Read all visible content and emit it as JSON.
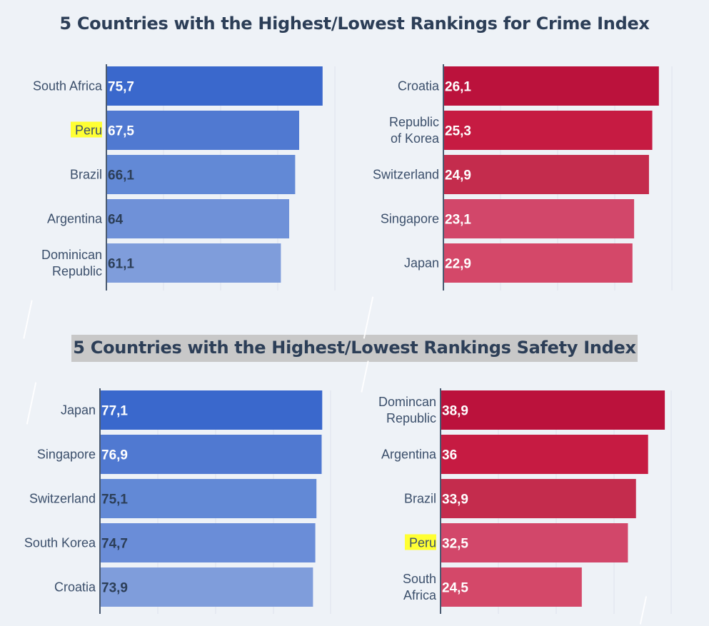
{
  "titles": {
    "top": "5 Countries with the Highest/Lowest Rankings for Crime Index",
    "bottom": "5 Countries with the Highest/Lowest Rankings Safety Index"
  },
  "highlighted_category": "Peru",
  "chart_data": [
    {
      "type": "bar",
      "orientation": "horizontal",
      "section": "Crime Index",
      "categories": [
        "South Africa",
        "Peru",
        "Brazil",
        "Argentina",
        "Dominican Republic"
      ],
      "values": [
        75.7,
        67.5,
        66.1,
        64,
        61.1
      ],
      "value_labels": [
        "75,7",
        "67,5",
        "66,1",
        "64",
        "61,1"
      ],
      "xlim": [
        0,
        80
      ],
      "grid": true,
      "colors": [
        "#3a68cc",
        "#5079d1",
        "#6289d6",
        "#6f91d8",
        "#7f9ddb"
      ],
      "label_colors": [
        "#ffffff",
        "#ffffff",
        "#2c3e57",
        "#2c3e57",
        "#2c3e57"
      ]
    },
    {
      "type": "bar",
      "orientation": "horizontal",
      "section": "Crime Index",
      "categories": [
        "Croatia",
        "Republic of Korea",
        "Switzerland",
        "Singapore",
        "Japan"
      ],
      "values": [
        26.1,
        25.3,
        24.9,
        23.1,
        22.9
      ],
      "value_labels": [
        "26,1",
        "25,3",
        "24,9",
        "23,1",
        "22,9"
      ],
      "xlim": [
        0,
        27.5
      ],
      "grid": true,
      "colors": [
        "#bb123c",
        "#c61b42",
        "#c42c4d",
        "#d2476a",
        "#d44869"
      ],
      "label_colors": [
        "#ffffff",
        "#ffffff",
        "#ffffff",
        "#ffffff",
        "#ffffff"
      ]
    },
    {
      "type": "bar",
      "orientation": "horizontal",
      "section": "Safety Index",
      "categories": [
        "Japan",
        "Singapore",
        "Switzerland",
        "South Korea",
        "Croatia"
      ],
      "values": [
        77.1,
        76.9,
        75.1,
        74.7,
        73.9
      ],
      "value_labels": [
        "77,1",
        "76,9",
        "75,1",
        "74,7",
        "73,9"
      ],
      "xlim": [
        0,
        80
      ],
      "grid": true,
      "colors": [
        "#3a68cc",
        "#5079d1",
        "#6289d6",
        "#6a8dd8",
        "#7f9ddb"
      ],
      "label_colors": [
        "#ffffff",
        "#ffffff",
        "#2c3e57",
        "#2c3e57",
        "#2c3e57"
      ]
    },
    {
      "type": "bar",
      "orientation": "horizontal",
      "section": "Safety Index",
      "categories": [
        "Domincan Republic",
        "Argentina",
        "Brazil",
        "Peru",
        "South Africa"
      ],
      "values": [
        38.9,
        36,
        33.9,
        32.5,
        24.5
      ],
      "value_labels": [
        "38,9",
        "36",
        "33,9",
        "32,5",
        "24,5"
      ],
      "xlim": [
        0,
        40
      ],
      "grid": true,
      "colors": [
        "#bb123c",
        "#c61b42",
        "#c42c4d",
        "#d2476a",
        "#d44869"
      ],
      "label_colors": [
        "#ffffff",
        "#ffffff",
        "#ffffff",
        "#ffffff",
        "#ffffff"
      ]
    }
  ]
}
